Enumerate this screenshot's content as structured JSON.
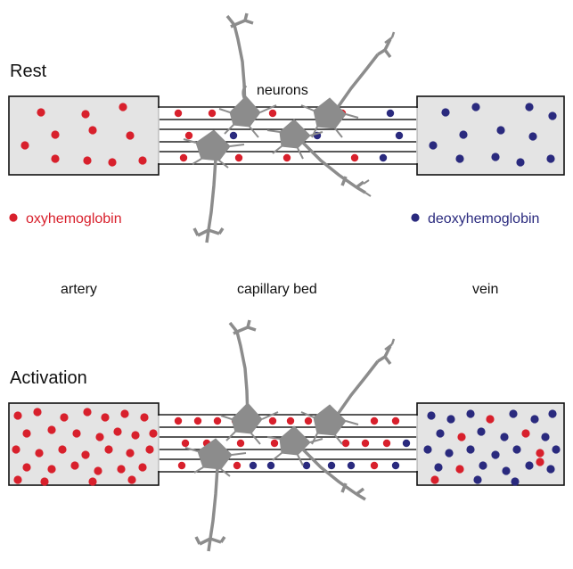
{
  "labels": {
    "rest": "Rest",
    "activation": "Activation",
    "neurons": "neurons",
    "oxy": "oxyhemoglobin",
    "deoxy": "deoxyhemoglobin",
    "artery": "artery",
    "capillary_bed": "capillary bed",
    "vein": "vein"
  },
  "colors": {
    "oxy": "#d8202c",
    "deoxy": "#2a2a7e",
    "vessel_fill": "#e4e4e4",
    "neuron": "#8c8c8c",
    "text": "#111111"
  },
  "icons": {
    "oxy_marker": "red-dot-icon",
    "deoxy_marker": "blue-dot-icon",
    "neuron": "neuron-icon"
  }
}
